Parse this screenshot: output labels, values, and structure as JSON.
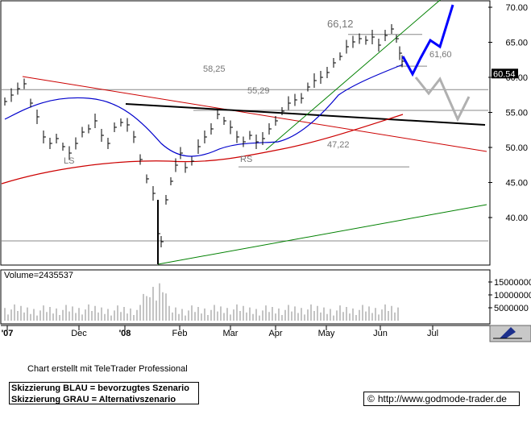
{
  "chart_data": {
    "type": "candlestick",
    "x_ticks": [
      "'07",
      "Dec",
      "'08",
      "Feb",
      "Mar",
      "Apr",
      "May",
      "Jun",
      "Jul"
    ],
    "y_ticks": [
      "70.00",
      "65.00",
      "60.00",
      "55.00",
      "50.00",
      "45.00",
      "40.00"
    ],
    "ylim": [
      35,
      71
    ],
    "last_price": "60.54",
    "levels": [
      {
        "label": "66,12",
        "value": 66.12
      },
      {
        "label": "61,60",
        "value": 61.6
      },
      {
        "label": "58,25",
        "value": 58.25
      },
      {
        "label": "55,29",
        "value": 55.29
      },
      {
        "label": "47,22",
        "value": 47.22
      }
    ],
    "pattern_labels": [
      "LS",
      "RS"
    ],
    "volume_label": "Volume=2435537",
    "volume_ticks": [
      "15000000",
      "10000000",
      "5000000"
    ],
    "colors": {
      "price": "#000000",
      "ma_blue": "#0000cc",
      "ma_red": "#cc0000",
      "trend_green": "#008000",
      "neckline": "#000000",
      "scenario_blue": "#0000ff",
      "scenario_gray": "#b0b0b0"
    }
  },
  "footer": {
    "credit": "Chart erstellt mit TeleTrader Professional",
    "legend_blue": "Skizzierung BLAU = bevorzugtes Szenario",
    "legend_gray": "Skizzierung GRAU = Alternativszenario",
    "url": "http://www.godmode-trader.de",
    "copyright_symbol": "©"
  }
}
